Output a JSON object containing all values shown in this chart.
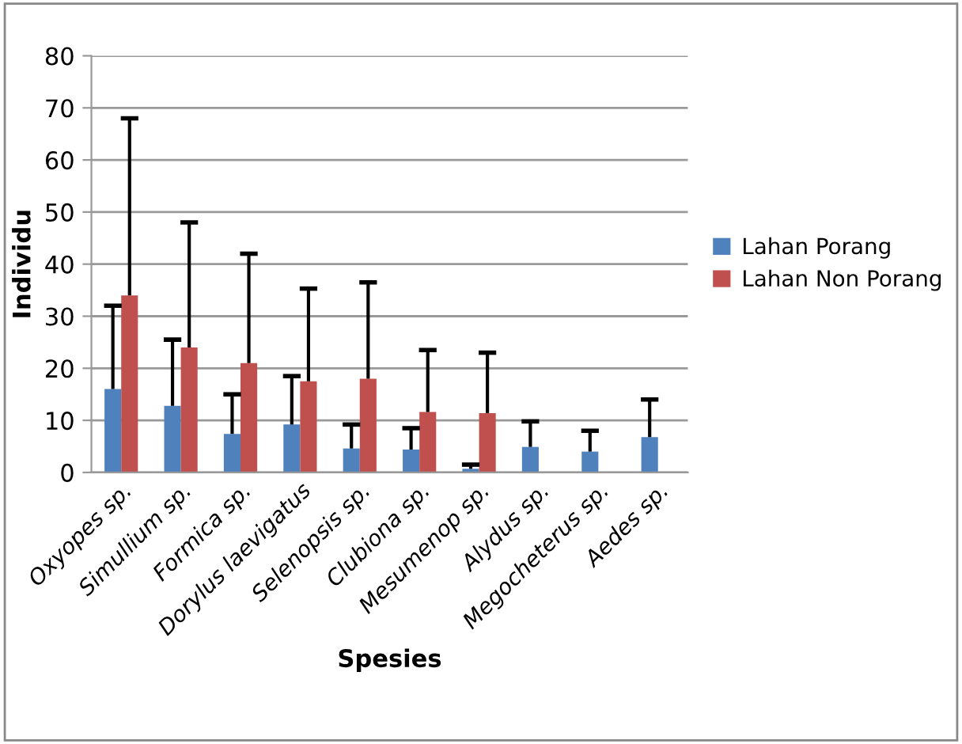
{
  "chart_data": {
    "type": "bar",
    "xlabel": "Spesies",
    "ylabel": "Individu",
    "categories": [
      "Oxyopes sp.",
      "Simullium sp.",
      "Formica sp.",
      "Dorylus laevigatus",
      "Selenopsis sp.",
      "Clubiona sp.",
      "Mesumenop sp.",
      "Alydus sp.",
      "Megocheterus sp.",
      "Aedes sp."
    ],
    "series": [
      {
        "name": "Lahan Porang",
        "color": "#4f81bd",
        "values": [
          16,
          12.8,
          7.4,
          9.2,
          4.6,
          4.4,
          0.7,
          4.9,
          4.0,
          6.8
        ],
        "errors": [
          [
            16,
            32
          ],
          [
            12.8,
            25.5
          ],
          [
            7.4,
            15
          ],
          [
            9.2,
            18.5
          ],
          [
            4.6,
            9.2
          ],
          [
            4.4,
            8.5
          ],
          [
            0.7,
            1.5
          ],
          [
            4.9,
            9.8
          ],
          [
            4.0,
            8
          ],
          [
            6.8,
            14
          ]
        ]
      },
      {
        "name": "Lahan Non Porang",
        "color": "#c0504d",
        "values": [
          34,
          24,
          21,
          17.5,
          18,
          11.6,
          11.4,
          null,
          null,
          null
        ],
        "errors": [
          [
            34,
            68
          ],
          [
            24,
            48
          ],
          [
            21,
            42
          ],
          [
            17.5,
            35.3
          ],
          [
            18,
            36.5
          ],
          [
            11.6,
            23.5
          ],
          [
            11.4,
            23
          ],
          null,
          null,
          null
        ]
      }
    ],
    "ylim": [
      0,
      80
    ],
    "yticks": [
      0,
      10,
      20,
      30,
      40,
      50,
      60,
      70,
      80
    ],
    "grid": "y",
    "legend": "right"
  }
}
